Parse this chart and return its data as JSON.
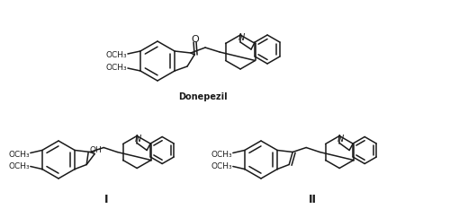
{
  "background_color": "#ffffff",
  "line_color": "#1a1a1a",
  "line_width": 1.1,
  "font_size_label": 7,
  "font_size_small": 6.5,
  "donepezil_label": "Donepezil",
  "label_I": "I",
  "label_II": "II",
  "label_OH": "OH",
  "label_O": "O",
  "label_OCH3": "OCH₃",
  "label_N": "N",
  "figsize": [
    5.0,
    2.33
  ],
  "dpi": 100
}
